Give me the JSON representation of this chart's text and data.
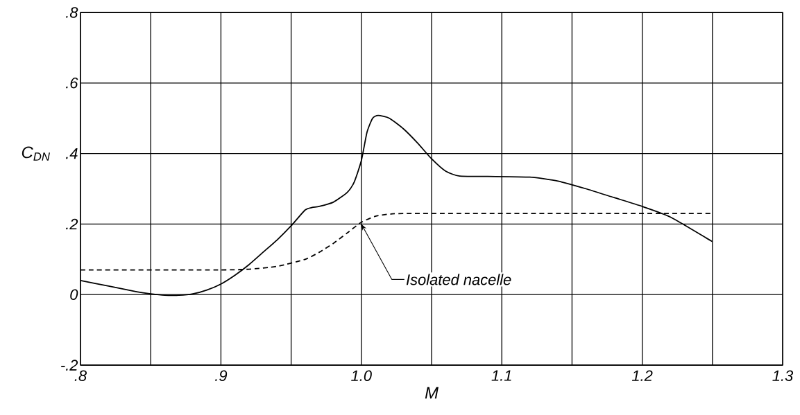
{
  "chart_data": {
    "type": "line",
    "xlabel": "M",
    "ylabel": "C$_{DN}$",
    "xlim": [
      0.8,
      1.3
    ],
    "ylim": [
      -0.2,
      0.8
    ],
    "xticks": [
      {
        "value": 0.8,
        "label": ".8"
      },
      {
        "value": 0.85,
        "label": null
      },
      {
        "value": 0.9,
        "label": ".9"
      },
      {
        "value": 0.95,
        "label": null
      },
      {
        "value": 1.0,
        "label": "1.0"
      },
      {
        "value": 1.05,
        "label": null
      },
      {
        "value": 1.1,
        "label": "1.1"
      },
      {
        "value": 1.15,
        "label": null
      },
      {
        "value": 1.2,
        "label": "1.2"
      },
      {
        "value": 1.25,
        "label": null
      },
      {
        "value": 1.3,
        "label": "1.3"
      }
    ],
    "yticks": [
      {
        "value": -0.2,
        "label": "-.2"
      },
      0,
      {
        "value": 0.2,
        "label": ".2"
      },
      {
        "value": 0.4,
        "label": ".4"
      },
      {
        "value": 0.6,
        "label": ".6"
      },
      {
        "value": 0.8,
        "label": ".8"
      }
    ],
    "grid": true,
    "series": [
      {
        "color": "#000000",
        "line_style": "solid",
        "x": [
          0.8,
          0.82,
          0.84,
          0.85,
          0.86,
          0.87,
          0.88,
          0.89,
          0.9,
          0.91,
          0.92,
          0.93,
          0.94,
          0.95,
          0.96,
          0.965,
          0.97,
          0.98,
          0.99,
          0.995,
          1.0,
          1.004,
          1.008,
          1.012,
          1.02,
          1.03,
          1.04,
          1.05,
          1.06,
          1.07,
          1.09,
          1.12,
          1.14,
          1.16,
          1.18,
          1.2,
          1.22,
          1.25
        ],
        "values": [
          0.04,
          0.024,
          0.008,
          0.002,
          -0.002,
          -0.002,
          0.002,
          0.013,
          0.03,
          0.055,
          0.085,
          0.12,
          0.155,
          0.195,
          0.24,
          0.247,
          0.25,
          0.262,
          0.29,
          0.32,
          0.38,
          0.46,
          0.5,
          0.508,
          0.5,
          0.47,
          0.43,
          0.385,
          0.35,
          0.336,
          0.335,
          0.333,
          0.322,
          0.3,
          0.275,
          0.25,
          0.22,
          0.15
        ]
      },
      {
        "color": "#000000",
        "line_style": "dashed",
        "x": [
          0.8,
          0.9,
          0.92,
          0.94,
          0.96,
          0.97,
          0.98,
          0.99,
          1.0,
          1.01,
          1.02,
          1.04,
          1.25
        ],
        "values": [
          0.07,
          0.07,
          0.072,
          0.08,
          0.1,
          0.12,
          0.145,
          0.175,
          0.205,
          0.222,
          0.228,
          0.23,
          0.23
        ]
      }
    ],
    "annotations": [
      {
        "text": "Isolated nacelle",
        "x": 1.0,
        "y": 0.2
      }
    ]
  }
}
